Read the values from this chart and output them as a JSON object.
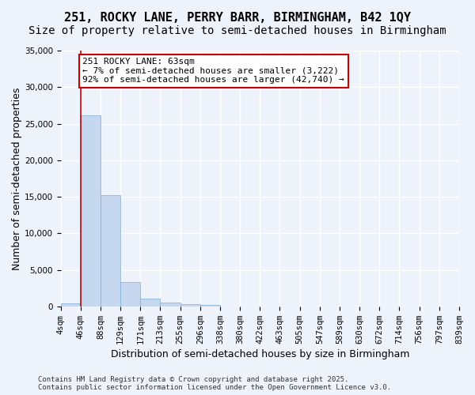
{
  "title1": "251, ROCKY LANE, PERRY BARR, BIRMINGHAM, B42 1QY",
  "title2": "Size of property relative to semi-detached houses in Birmingham",
  "xlabel": "Distribution of semi-detached houses by size in Birmingham",
  "ylabel": "Number of semi-detached properties",
  "bar_values": [
    400,
    26100,
    15200,
    3300,
    1100,
    550,
    350,
    150,
    0,
    0,
    0,
    0,
    0,
    0,
    0,
    0,
    0,
    0,
    0,
    0
  ],
  "bin_labels": [
    "4sqm",
    "46sqm",
    "88sqm",
    "129sqm",
    "171sqm",
    "213sqm",
    "255sqm",
    "296sqm",
    "338sqm",
    "380sqm",
    "422sqm",
    "463sqm",
    "505sqm",
    "547sqm",
    "589sqm",
    "630sqm",
    "672sqm",
    "714sqm",
    "756sqm",
    "797sqm",
    "839sqm"
  ],
  "bar_color": "#c5d8f0",
  "bar_edge_color": "#7fafd4",
  "background_color": "#eef3fb",
  "grid_color": "#ffffff",
  "annotation_text": "251 ROCKY LANE: 63sqm\n← 7% of semi-detached houses are smaller (3,222)\n92% of semi-detached houses are larger (42,740) →",
  "annotation_box_color": "#ffffff",
  "annotation_border_color": "#cc0000",
  "red_line_x": 1.0,
  "ylim": [
    0,
    35000
  ],
  "yticks": [
    0,
    5000,
    10000,
    15000,
    20000,
    25000,
    30000,
    35000
  ],
  "copyright_text": "Contains HM Land Registry data © Crown copyright and database right 2025.\nContains public sector information licensed under the Open Government Licence v3.0.",
  "title_fontsize": 11,
  "subtitle_fontsize": 10,
  "axis_label_fontsize": 9,
  "tick_fontsize": 7.5,
  "annotation_fontsize": 8
}
